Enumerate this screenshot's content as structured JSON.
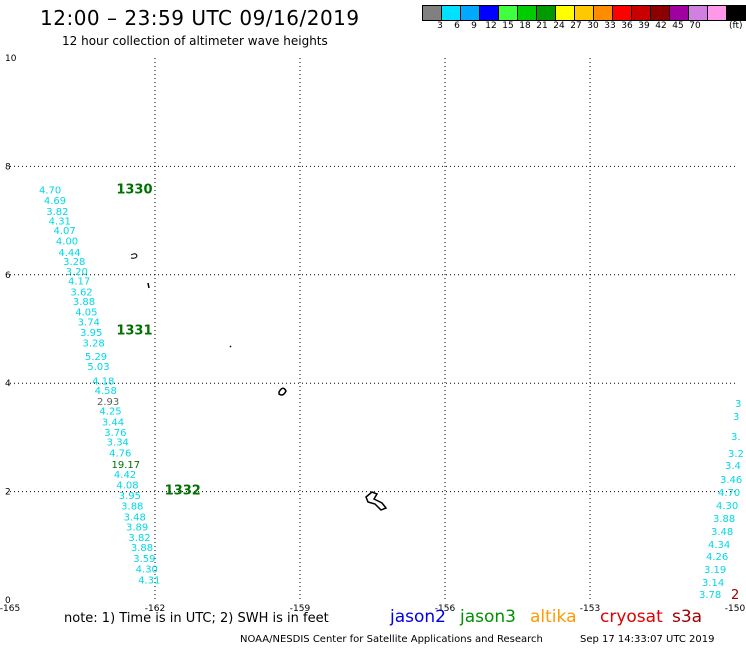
{
  "header": {
    "title": "12:00 – 23:59 UTC 09/16/2019",
    "subtitle": "12 hour collection of altimeter wave heights"
  },
  "colorbar": {
    "colors": [
      "#808080",
      "#00e0ff",
      "#00a8ff",
      "#0000ff",
      "#40ff40",
      "#00cc00",
      "#009a00",
      "#ffff00",
      "#ffc800",
      "#ff8c00",
      "#ff0000",
      "#c80000",
      "#8c0000",
      "#a000a0",
      "#d080e0",
      "#ff98e8",
      "#000000"
    ],
    "ticks": [
      "3",
      "6",
      "9",
      "12",
      "15",
      "18",
      "21",
      "24",
      "27",
      "30",
      "33",
      "36",
      "39",
      "42",
      "45",
      "70"
    ],
    "unit": "(ft)"
  },
  "chart_data": {
    "type": "scatter",
    "xlim": [
      -165,
      -150
    ],
    "ylim": [
      0,
      10
    ],
    "x_ticks": [
      "-165",
      "-162",
      "-159",
      "-156",
      "-153",
      "-150"
    ],
    "y_ticks": [
      "10",
      "8",
      "6",
      "4",
      "2",
      "0"
    ],
    "grid": true,
    "passes": [
      {
        "label": "1330",
        "x": -162.8,
        "y": 7.5,
        "color": "#007000"
      },
      {
        "label": "1331",
        "x": -162.8,
        "y": 4.9,
        "color": "#007000"
      },
      {
        "label": "1332",
        "x": -161.8,
        "y": 1.95,
        "color": "#007000"
      }
    ],
    "track": [
      {
        "x": -164.4,
        "y": 7.5,
        "v": "4.70"
      },
      {
        "x": -164.3,
        "y": 7.31,
        "v": "4.69"
      },
      {
        "x": -164.25,
        "y": 7.1,
        "v": "3.82"
      },
      {
        "x": -164.2,
        "y": 6.93,
        "v": "4.31"
      },
      {
        "x": -164.1,
        "y": 6.75,
        "v": "4.07"
      },
      {
        "x": -164.05,
        "y": 6.56,
        "v": "4.00"
      },
      {
        "x": -164.0,
        "y": 6.35,
        "v": "4.44"
      },
      {
        "x": -163.9,
        "y": 6.18,
        "v": "3.28"
      },
      {
        "x": -163.85,
        "y": 6.0,
        "v": "3.20"
      },
      {
        "x": -163.8,
        "y": 5.82,
        "v": "4.17"
      },
      {
        "x": -163.75,
        "y": 5.62,
        "v": "3.62"
      },
      {
        "x": -163.7,
        "y": 5.44,
        "v": "3.88"
      },
      {
        "x": -163.65,
        "y": 5.25,
        "v": "4.05"
      },
      {
        "x": -163.6,
        "y": 5.06,
        "v": "3.74"
      },
      {
        "x": -163.55,
        "y": 4.87,
        "v": "3.95"
      },
      {
        "x": -163.5,
        "y": 4.68,
        "v": "3.28"
      },
      {
        "x": -163.45,
        "y": 4.43,
        "v": "5.29"
      },
      {
        "x": -163.4,
        "y": 4.24,
        "v": "5.03"
      },
      {
        "x": -163.3,
        "y": 3.98,
        "v": "4.18"
      },
      {
        "x": -163.25,
        "y": 3.8,
        "v": "4.58"
      },
      {
        "x": -163.2,
        "y": 3.6,
        "v": "2.93"
      },
      {
        "x": -163.15,
        "y": 3.42,
        "v": "4.25"
      },
      {
        "x": -163.1,
        "y": 3.22,
        "v": "3.44"
      },
      {
        "x": -163.05,
        "y": 3.03,
        "v": "3.76"
      },
      {
        "x": -163.0,
        "y": 2.85,
        "v": "3.34"
      },
      {
        "x": -162.95,
        "y": 2.65,
        "v": "4.76"
      },
      {
        "x": -162.9,
        "y": 2.44,
        "v": "19.17"
      },
      {
        "x": -162.85,
        "y": 2.25,
        "v": "4.42"
      },
      {
        "x": -162.8,
        "y": 2.06,
        "v": "4.08"
      },
      {
        "x": -162.75,
        "y": 1.86,
        "v": "3.95"
      },
      {
        "x": -162.7,
        "y": 1.67,
        "v": "3.88"
      },
      {
        "x": -162.65,
        "y": 1.47,
        "v": "3.48"
      },
      {
        "x": -162.6,
        "y": 1.28,
        "v": "3.89"
      },
      {
        "x": -162.55,
        "y": 1.09,
        "v": "3.82"
      },
      {
        "x": -162.5,
        "y": 0.9,
        "v": "3.88"
      },
      {
        "x": -162.45,
        "y": 0.7,
        "v": "3.59"
      },
      {
        "x": -162.4,
        "y": 0.51,
        "v": "4.30"
      },
      {
        "x": -162.35,
        "y": 0.3,
        "v": "4.31"
      }
    ]
  },
  "footer": {
    "note": "note:  1) Time is in UTC;  2) SWH is in feet",
    "legend": [
      {
        "name": "jason2",
        "color": "#0000e0"
      },
      {
        "name": "jason3",
        "color": "#009000"
      },
      {
        "name": "altika",
        "color": "#ff9a00"
      },
      {
        "name": "cryosat",
        "color": "#e00000"
      },
      {
        "name": "s3a",
        "color": "#a00000"
      }
    ],
    "credit": "NOAA/NESDIS Center for Satellite Applications and Research",
    "timestamp": "Sep 17 14:33:07 UTC 2019"
  }
}
